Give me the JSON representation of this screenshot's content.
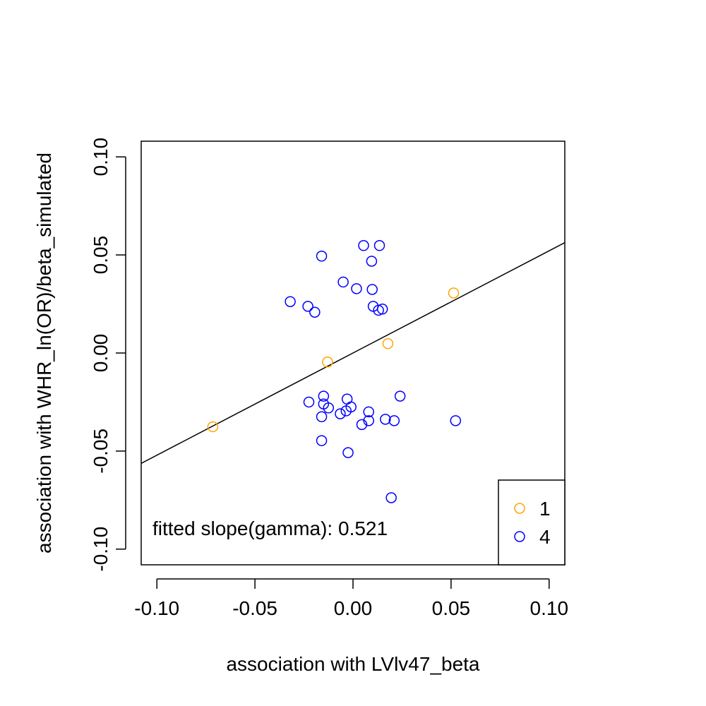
{
  "chart_data": {
    "type": "scatter",
    "title": "",
    "xlabel": "association with LVlv47_beta",
    "ylabel": "association with WHR_ln(OR)/beta_simulated",
    "xlim": [
      -0.108,
      0.108
    ],
    "ylim": [
      -0.108,
      0.108
    ],
    "x_ticks": [
      -0.1,
      -0.05,
      0.0,
      0.05,
      0.1
    ],
    "x_tick_labels": [
      "-0.10",
      "-0.05",
      "0.00",
      "0.05",
      "0.10"
    ],
    "y_ticks": [
      -0.1,
      -0.05,
      0.0,
      0.05,
      0.1
    ],
    "y_tick_labels": [
      "-0.10",
      "-0.05",
      "0.00",
      "0.05",
      "0.10"
    ],
    "grid": false,
    "legend_position": "bottom-right",
    "series": [
      {
        "name": "1",
        "color": "#FFA500",
        "marker": "open-circle",
        "points": [
          [
            -0.0715,
            -0.0376
          ],
          [
            -0.013,
            -0.0046
          ],
          [
            0.0178,
            0.0048
          ],
          [
            0.0513,
            0.0306
          ]
        ]
      },
      {
        "name": "4",
        "color": "#0000FF",
        "marker": "open-circle",
        "points": [
          [
            -0.016,
            0.0494
          ],
          [
            0.0054,
            0.0548
          ],
          [
            0.0135,
            0.0548
          ],
          [
            0.0095,
            0.0468
          ],
          [
            -0.005,
            0.0362
          ],
          [
            0.0018,
            0.0328
          ],
          [
            0.0098,
            0.0324
          ],
          [
            -0.032,
            0.0262
          ],
          [
            -0.023,
            0.0238
          ],
          [
            -0.0195,
            0.0208
          ],
          [
            0.0103,
            0.0238
          ],
          [
            0.013,
            0.0218
          ],
          [
            0.015,
            0.0224
          ],
          [
            -0.015,
            -0.022
          ],
          [
            0.024,
            -0.022
          ],
          [
            -0.0225,
            -0.025
          ],
          [
            -0.015,
            -0.026
          ],
          [
            -0.0125,
            -0.028
          ],
          [
            -0.003,
            -0.0235
          ],
          [
            -0.001,
            -0.0275
          ],
          [
            -0.0035,
            -0.0295
          ],
          [
            -0.0065,
            -0.031
          ],
          [
            -0.016,
            -0.0325
          ],
          [
            0.008,
            -0.03
          ],
          [
            0.008,
            -0.0345
          ],
          [
            0.0045,
            -0.0365
          ],
          [
            0.0165,
            -0.0338
          ],
          [
            0.021,
            -0.0345
          ],
          [
            0.0523,
            -0.0345
          ],
          [
            -0.016,
            -0.0447
          ],
          [
            -0.0025,
            -0.0508
          ],
          [
            0.0195,
            -0.0738
          ]
        ]
      }
    ],
    "fit_line": {
      "intercept": 0.0,
      "slope": 0.521
    },
    "annotations": [
      "fitted slope(gamma): 0.521"
    ]
  }
}
